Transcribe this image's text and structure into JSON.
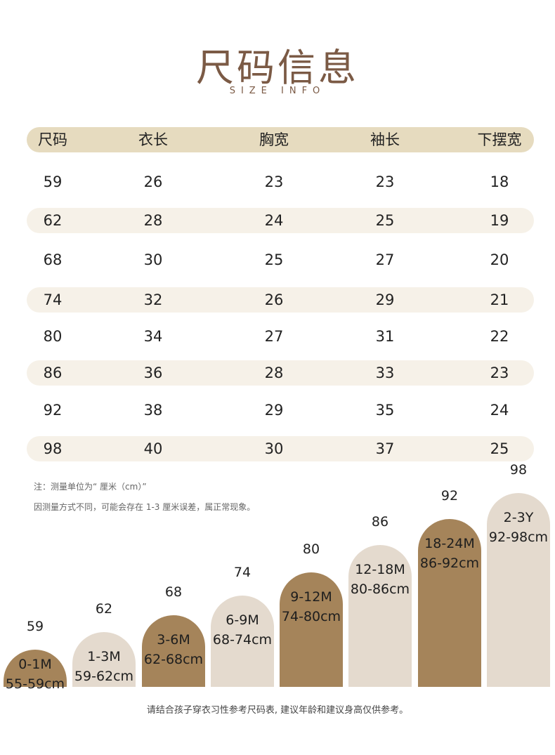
{
  "title": "尺码信息",
  "subtitle": "SIZE INFO",
  "table": {
    "headers": [
      "尺码",
      "衣长",
      "胸宽",
      "袖长",
      "下摆宽"
    ],
    "rows": [
      [
        "59",
        "26",
        "23",
        "23",
        "18"
      ],
      [
        "62",
        "28",
        "24",
        "25",
        "19"
      ],
      [
        "68",
        "30",
        "25",
        "27",
        "20"
      ],
      [
        "74",
        "32",
        "26",
        "29",
        "21"
      ],
      [
        "80",
        "34",
        "27",
        "31",
        "22"
      ],
      [
        "86",
        "36",
        "28",
        "33",
        "23"
      ],
      [
        "92",
        "38",
        "29",
        "35",
        "24"
      ],
      [
        "98",
        "40",
        "30",
        "37",
        "25"
      ]
    ]
  },
  "notes": [
    "注：测量单位为“ 厘米（cm）”",
    "因测量方式不同，可能会存在 1-3 厘米误差，属正常现象。"
  ],
  "sizes": [
    {
      "size": "59",
      "age": "0-1M",
      "height": "55-59cm",
      "color": "#a5845a"
    },
    {
      "size": "62",
      "age": "1-3M",
      "height": "59-62cm",
      "color": "#e4dace"
    },
    {
      "size": "68",
      "age": "3-6M",
      "height": "62-68cm",
      "color": "#a5845a"
    },
    {
      "size": "74",
      "age": "6-9M",
      "height": "68-74cm",
      "color": "#e4dace"
    },
    {
      "size": "80",
      "age": "9-12M",
      "height": "74-80cm",
      "color": "#a5845a"
    },
    {
      "size": "86",
      "age": "12-18M",
      "height": "80-86cm",
      "color": "#e4dace"
    },
    {
      "size": "92",
      "age": "18-24M",
      "height": "86-92cm",
      "color": "#a5845a"
    },
    {
      "size": "98",
      "age": "2-3Y",
      "height": "92-98cm",
      "color": "#e4dace"
    }
  ],
  "footer": "请结合孩子穿衣习性参考尺码表, 建议年龄和建议身高仅供参考。"
}
